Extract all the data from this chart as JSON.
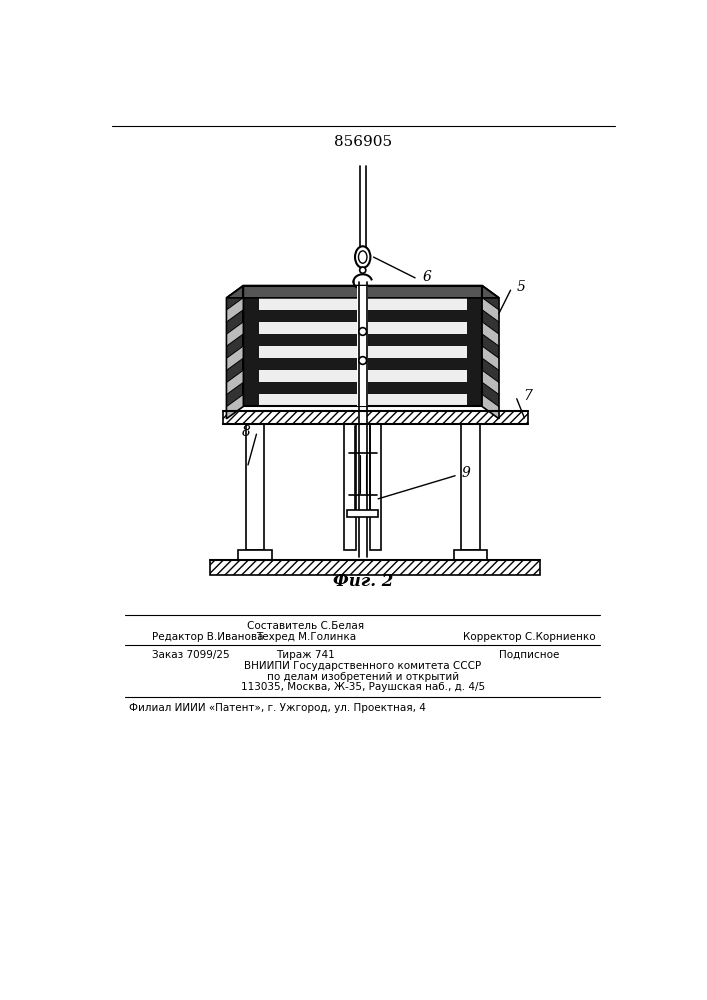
{
  "title": "856905",
  "fig_label": "Фиг. 2",
  "bg_color": "#ffffff",
  "line_color": "#000000",
  "label_6": "6",
  "label_5": "5",
  "label_7": "7",
  "label_8": "8",
  "label_9": "9",
  "footer_line1_left": "Редактор В.Иванова",
  "footer_line1_center": "Составитель С.Белая",
  "footer_line1_right": "Корректор С.Корниенко",
  "footer_line2_center": "Техред М.Голинка",
  "footer_line3_left": "Заказ 7099/25",
  "footer_line3_center": "Тираж 741",
  "footer_line3_right": "Подписное",
  "footer_line4": "ВНИИПИ Государственного комитета СССР",
  "footer_line5": "по делам изобретений и открытий",
  "footer_line6": "113035, Москва, Ж-35, Раушская наб., д. 4/5",
  "footer_line7": "Филиал ИИИИ «Патент», г. Ужгород, ул. Проектная, 4"
}
